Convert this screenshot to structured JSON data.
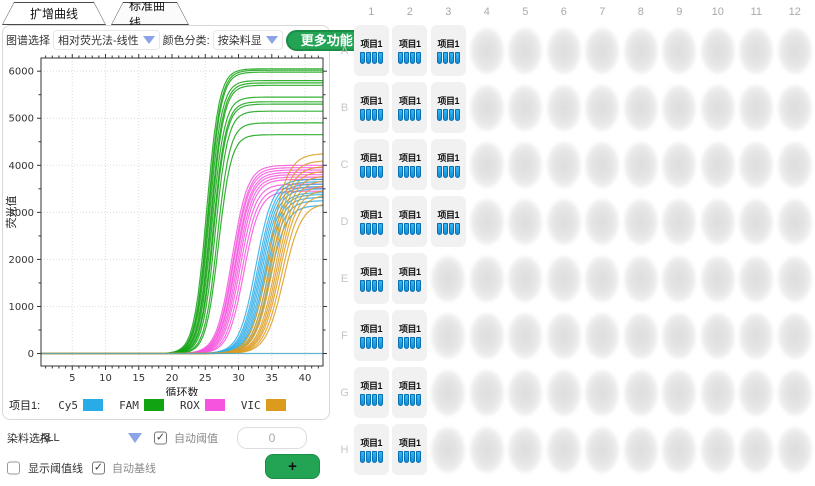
{
  "tabs": [
    {
      "label": "扩增曲线",
      "active": true
    },
    {
      "label": "标准曲线",
      "active": false
    }
  ],
  "toolbar": {
    "chart_select_label": "图谱选择",
    "method_value": "相对荧光法-线性",
    "color_class_label": "颜色分类:",
    "color_class_value": "按染料显示",
    "more_button": "更多功能"
  },
  "chart_data": {
    "type": "line",
    "title": "",
    "xlabel": "循环数",
    "ylabel": "荧光值",
    "xlim": [
      0.3,
      42.7
    ],
    "ylim": [
      -265,
      6280
    ],
    "xticks": [
      5,
      10,
      15,
      20,
      25,
      30,
      35,
      40
    ],
    "yticks": [
      0,
      1000,
      2000,
      3000,
      4000,
      5000,
      6000
    ],
    "grid": "dotted major gridlines both axes",
    "legend_position": "below plot",
    "model": "amplification sigmoid: y = plateau / (1 + exp(-k*(x - ct)))",
    "curve_format": "[ct, plateau]",
    "series": [
      {
        "name": "FAM",
        "color": "#12A312",
        "k": 1.05,
        "curves": [
          [
            25.2,
            6050
          ],
          [
            25.4,
            6020
          ],
          [
            25.5,
            5980
          ],
          [
            25.6,
            5800
          ],
          [
            25.8,
            5750
          ],
          [
            25.9,
            5700
          ],
          [
            26.0,
            5450
          ],
          [
            26.2,
            5350
          ],
          [
            26.3,
            5300
          ],
          [
            26.5,
            5150
          ],
          [
            26.8,
            4900
          ],
          [
            27.0,
            4650
          ]
        ]
      },
      {
        "name": "ROX",
        "color": "#F653DE",
        "k": 0.85,
        "curves": [
          [
            29.0,
            4000
          ],
          [
            29.2,
            3950
          ],
          [
            29.3,
            3900
          ],
          [
            29.5,
            3850
          ],
          [
            29.6,
            3800
          ],
          [
            29.8,
            3750
          ],
          [
            30.0,
            3700
          ],
          [
            30.2,
            3600
          ],
          [
            30.5,
            3520
          ],
          [
            30.8,
            3450
          ]
        ]
      },
      {
        "name": "Cy5",
        "color": "#29ABE8",
        "k": 0.8,
        "curves": [
          [
            32.6,
            3700
          ],
          [
            32.9,
            3650
          ],
          [
            33.1,
            3600
          ],
          [
            33.3,
            3550
          ],
          [
            33.5,
            3500
          ],
          [
            33.7,
            3420
          ],
          [
            33.9,
            3380
          ],
          [
            34.1,
            3320
          ],
          [
            34.4,
            3250
          ],
          [
            34.7,
            3150
          ]
        ]
      },
      {
        "name": "VIC",
        "color": "#DD9B1E",
        "k": 0.75,
        "curves": [
          [
            34.6,
            4250
          ],
          [
            34.9,
            4100
          ],
          [
            35.1,
            3980
          ],
          [
            35.3,
            3880
          ],
          [
            35.6,
            3780
          ],
          [
            35.8,
            3680
          ],
          [
            36.0,
            3580
          ],
          [
            36.2,
            3480
          ],
          [
            36.5,
            3380
          ],
          [
            36.8,
            3200
          ]
        ]
      },
      {
        "name": "baseline",
        "color": "#49A8C8",
        "k": 1,
        "curves": [
          [
            999,
            0
          ]
        ]
      }
    ]
  },
  "legend": {
    "group_label": "项目1:",
    "items": [
      {
        "name": "Cy5",
        "color": "#29ABE8"
      },
      {
        "name": "FAM",
        "color": "#12A312"
      },
      {
        "name": "ROX",
        "color": "#F653DE"
      },
      {
        "name": "VIC",
        "color": "#DD9B1E"
      }
    ]
  },
  "dye_row": {
    "label": "染料选择",
    "value": "ALL",
    "auto_threshold_label": "自动阈值",
    "auto_threshold_checked": true,
    "threshold_value": "0"
  },
  "bottom_row": {
    "show_threshold_label": "显示阈值线",
    "show_threshold_checked": false,
    "auto_baseline_label": "自动基线",
    "auto_baseline_checked": true,
    "add_button": "+"
  },
  "plate": {
    "columns": [
      "1",
      "2",
      "3",
      "4",
      "5",
      "6",
      "7",
      "8",
      "9",
      "10",
      "11",
      "12"
    ],
    "rows": [
      "A",
      "B",
      "C",
      "D",
      "E",
      "F",
      "G",
      "H"
    ],
    "well_label": "项目1",
    "tubes_per_well": 4,
    "filled": {
      "A": [
        1,
        2,
        3
      ],
      "B": [
        1,
        2,
        3
      ],
      "C": [
        1,
        2,
        3
      ],
      "D": [
        1,
        2,
        3
      ],
      "E": [
        1,
        2
      ],
      "F": [
        1,
        2
      ],
      "G": [
        1,
        2
      ],
      "H": [
        1,
        2
      ]
    }
  },
  "colors": {
    "accent_green": "#23A455",
    "dropdown_arrow": "#8CA3E8",
    "tube_blue": "#18A2EF"
  }
}
